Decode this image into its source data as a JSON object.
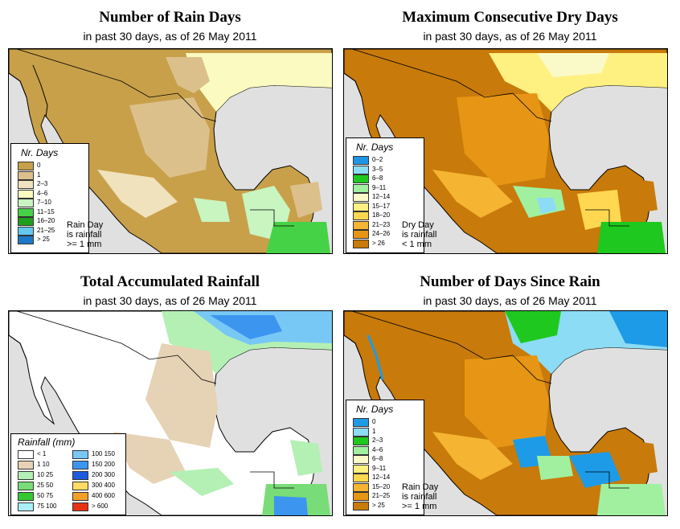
{
  "panels": [
    {
      "id": "rain-days",
      "title": "Number of Rain Days",
      "subtitle": "in past 30 days, as of  26 May 2011",
      "legend_title": "Nr. Days",
      "legend": [
        {
          "label": "0",
          "color": "#c8a04a"
        },
        {
          "label": "1",
          "color": "#dcc08c"
        },
        {
          "label": "2–3",
          "color": "#f0e2bc"
        },
        {
          "label": "4–6",
          "color": "#fbfac0"
        },
        {
          "label": "7–10",
          "color": "#c8f5c0"
        },
        {
          "label": "11–15",
          "color": "#46d246"
        },
        {
          "label": "16–20",
          "color": "#1ea01e"
        },
        {
          "label": "21–25",
          "color": "#64c8f0"
        },
        {
          "label": "> 25",
          "color": "#1e78c8"
        }
      ],
      "note": [
        "Rain Day",
        "is rainfall",
        ">= 1 mm"
      ]
    },
    {
      "id": "max-dry",
      "title": "Maximum Consecutive Dry Days",
      "subtitle": "in past 30 days, as of  26 May 2011",
      "legend_title": "Nr. Days",
      "legend": [
        {
          "label": "0–2",
          "color": "#1e96e6"
        },
        {
          "label": "3–5",
          "color": "#8cdcf5"
        },
        {
          "label": "6–8",
          "color": "#1ec81e"
        },
        {
          "label": "9–11",
          "color": "#a0f0a0"
        },
        {
          "label": "12–14",
          "color": "#fafac8"
        },
        {
          "label": "15–17",
          "color": "#fff082"
        },
        {
          "label": "18–20",
          "color": "#ffd750"
        },
        {
          "label": "21–23",
          "color": "#f5b432"
        },
        {
          "label": "24–26",
          "color": "#e69614"
        },
        {
          "label": "> 26",
          "color": "#c87a0a"
        }
      ],
      "note": [
        "Dry Day",
        "is rainfall",
        "< 1 mm"
      ]
    },
    {
      "id": "total-rain",
      "title": "Total Accumulated Rainfall",
      "subtitle": "in past 30 days, as of  26 May 2011",
      "legend_title": "Rainfall (mm)",
      "legend": [
        {
          "label": "< 1",
          "color": "#ffffff"
        },
        {
          "label": "1    10",
          "color": "#e6d2b4"
        },
        {
          "label": "10   25",
          "color": "#b4f0b4"
        },
        {
          "label": "25   50",
          "color": "#78dc78"
        },
        {
          "label": "50   75",
          "color": "#32c832"
        },
        {
          "label": "75  100",
          "color": "#aaf0fa"
        },
        {
          "label": "100  150",
          "color": "#78c8f5"
        },
        {
          "label": "150  200",
          "color": "#3c96f0"
        },
        {
          "label": "200  300",
          "color": "#1e5adc"
        },
        {
          "label": "300  400",
          "color": "#ffdc64"
        },
        {
          "label": "400  600",
          "color": "#f0a028"
        },
        {
          "label": "> 600",
          "color": "#e63214"
        }
      ],
      "note": []
    },
    {
      "id": "days-since",
      "title": "Number of Days Since Rain",
      "subtitle": "in past 30 days, as of  26 May 2011",
      "legend_title": "Nr. Days",
      "legend": [
        {
          "label": "0",
          "color": "#1e9be6"
        },
        {
          "label": "1",
          "color": "#8cdcf5"
        },
        {
          "label": "2–3",
          "color": "#1ec81e"
        },
        {
          "label": "4–6",
          "color": "#a0f0a0"
        },
        {
          "label": "6–8",
          "color": "#fafac8"
        },
        {
          "label": "9–11",
          "color": "#fff082"
        },
        {
          "label": "12–14",
          "color": "#ffd750"
        },
        {
          "label": "15–20",
          "color": "#f5b432"
        },
        {
          "label": "21–25",
          "color": "#e69614"
        },
        {
          "label": "> 25",
          "color": "#c87a0a"
        }
      ],
      "note": [
        "Rain Day",
        "is rainfall",
        ">= 1 mm"
      ]
    }
  ],
  "colors": {
    "ocean": "#e0e0e0",
    "border": "#000000"
  }
}
